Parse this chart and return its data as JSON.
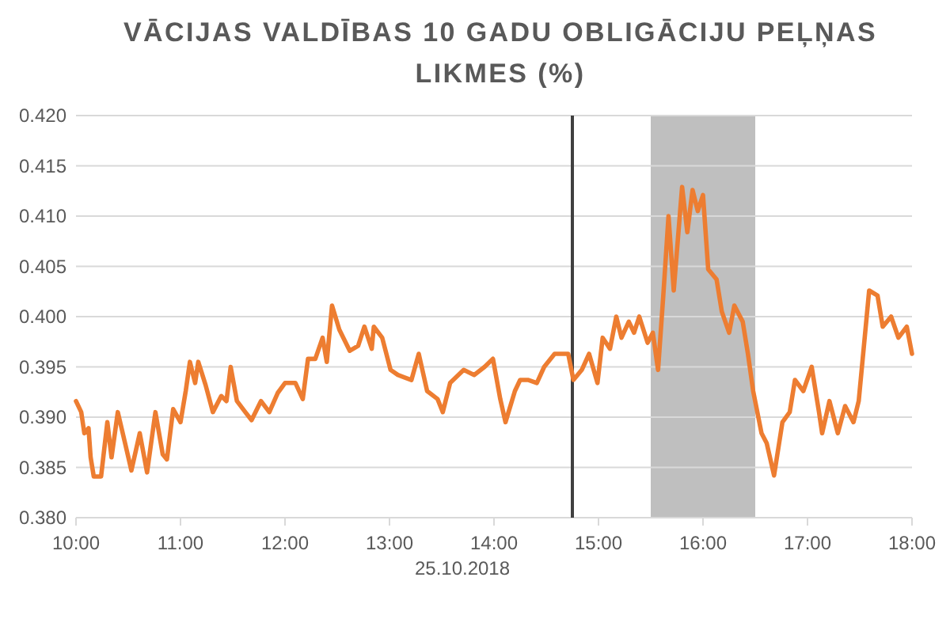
{
  "chart_data": {
    "type": "line",
    "title": "VĀCIJAS VALDĪBAS 10 GADU OBLIGĀCIJU PEĻŅAS LIKMES (%)",
    "xlabel": "25.10.2018",
    "xlim": [
      10,
      18
    ],
    "xticks": [
      {
        "value": 10,
        "label": "10:00"
      },
      {
        "value": 11,
        "label": "11:00"
      },
      {
        "value": 12,
        "label": "12:00"
      },
      {
        "value": 13,
        "label": "13:00"
      },
      {
        "value": 14,
        "label": "14:00"
      },
      {
        "value": 15,
        "label": "15:00"
      },
      {
        "value": 16,
        "label": "16:00"
      },
      {
        "value": 17,
        "label": "17:00"
      },
      {
        "value": 18,
        "label": "18:00"
      }
    ],
    "ylim": [
      0.38,
      0.42
    ],
    "yticks": [
      {
        "value": 0.38,
        "label": "0.380"
      },
      {
        "value": 0.385,
        "label": "0.385"
      },
      {
        "value": 0.39,
        "label": "0.390"
      },
      {
        "value": 0.395,
        "label": "0.395"
      },
      {
        "value": 0.4,
        "label": "0.400"
      },
      {
        "value": 0.405,
        "label": "0.405"
      },
      {
        "value": 0.41,
        "label": "0.410"
      },
      {
        "value": 0.415,
        "label": "0.415"
      },
      {
        "value": 0.42,
        "label": "0.420"
      }
    ],
    "grid": "y",
    "line_style": "solid",
    "ref_lines": [
      {
        "axis": "x",
        "value": 14.75,
        "color": "#404040"
      }
    ],
    "bands": [
      {
        "axis": "x",
        "from": 15.5,
        "to": 16.5,
        "color": "#bfbfbf"
      }
    ],
    "series": [
      {
        "color": "#ed7d31",
        "x": [
          10.0,
          10.05,
          10.08,
          10.12,
          10.14,
          10.17,
          10.24,
          10.3,
          10.34,
          10.4,
          10.47,
          10.53,
          10.61,
          10.68,
          10.76,
          10.83,
          10.87,
          10.93,
          11.0,
          11.05,
          11.09,
          11.14,
          11.17,
          11.24,
          11.31,
          11.39,
          11.44,
          11.48,
          11.54,
          11.62,
          11.68,
          11.77,
          11.85,
          11.93,
          12.0,
          12.1,
          12.17,
          12.22,
          12.29,
          12.36,
          12.4,
          12.45,
          12.52,
          12.62,
          12.7,
          12.76,
          12.83,
          12.85,
          12.93,
          13.01,
          13.08,
          13.21,
          13.28,
          13.36,
          13.46,
          13.51,
          13.58,
          13.71,
          13.81,
          13.91,
          13.99,
          14.06,
          14.11,
          14.2,
          14.25,
          14.33,
          14.41,
          14.48,
          14.58,
          14.63,
          14.71,
          14.76,
          14.84,
          14.91,
          14.99,
          15.04,
          15.11,
          15.17,
          15.22,
          15.29,
          15.34,
          15.39,
          15.47,
          15.52,
          15.57,
          15.62,
          15.67,
          15.72,
          15.8,
          15.85,
          15.9,
          15.95,
          16.0,
          16.05,
          16.13,
          16.18,
          16.25,
          16.3,
          16.38,
          16.43,
          16.48,
          16.56,
          16.61,
          16.68,
          16.76,
          16.83,
          16.88,
          16.96,
          17.04,
          17.11,
          17.14,
          17.21,
          17.29,
          17.36,
          17.44,
          17.49,
          17.59,
          17.67,
          17.72,
          17.8,
          17.87,
          17.95,
          18.0
        ],
        "values": [
          0.3916,
          0.3905,
          0.3884,
          0.3889,
          0.386,
          0.3841,
          0.3841,
          0.3895,
          0.386,
          0.3905,
          0.3874,
          0.3847,
          0.3884,
          0.3845,
          0.3905,
          0.3863,
          0.3858,
          0.3908,
          0.3895,
          0.3926,
          0.3955,
          0.3934,
          0.3955,
          0.3932,
          0.3905,
          0.3921,
          0.3916,
          0.395,
          0.3916,
          0.3905,
          0.3897,
          0.3916,
          0.3905,
          0.3924,
          0.3934,
          0.3934,
          0.3918,
          0.3958,
          0.3958,
          0.3979,
          0.3955,
          0.4011,
          0.3987,
          0.3966,
          0.3971,
          0.399,
          0.3968,
          0.399,
          0.3979,
          0.3947,
          0.3942,
          0.3937,
          0.3963,
          0.3926,
          0.3918,
          0.3905,
          0.3934,
          0.3947,
          0.3942,
          0.395,
          0.3958,
          0.3918,
          0.3895,
          0.3926,
          0.3937,
          0.3937,
          0.3934,
          0.395,
          0.3963,
          0.3963,
          0.3963,
          0.3937,
          0.3947,
          0.3963,
          0.3934,
          0.3979,
          0.3968,
          0.4,
          0.3979,
          0.3995,
          0.3984,
          0.4,
          0.3974,
          0.3984,
          0.3947,
          0.4021,
          0.41,
          0.4026,
          0.4129,
          0.4084,
          0.4126,
          0.4105,
          0.4121,
          0.4047,
          0.4037,
          0.4005,
          0.3984,
          0.4011,
          0.3995,
          0.3963,
          0.3926,
          0.3884,
          0.3874,
          0.3842,
          0.3895,
          0.3905,
          0.3937,
          0.3926,
          0.395,
          0.3905,
          0.3884,
          0.3916,
          0.3884,
          0.3911,
          0.3895,
          0.3916,
          0.4026,
          0.4021,
          0.399,
          0.4,
          0.3979,
          0.399,
          0.3963
        ]
      }
    ]
  }
}
